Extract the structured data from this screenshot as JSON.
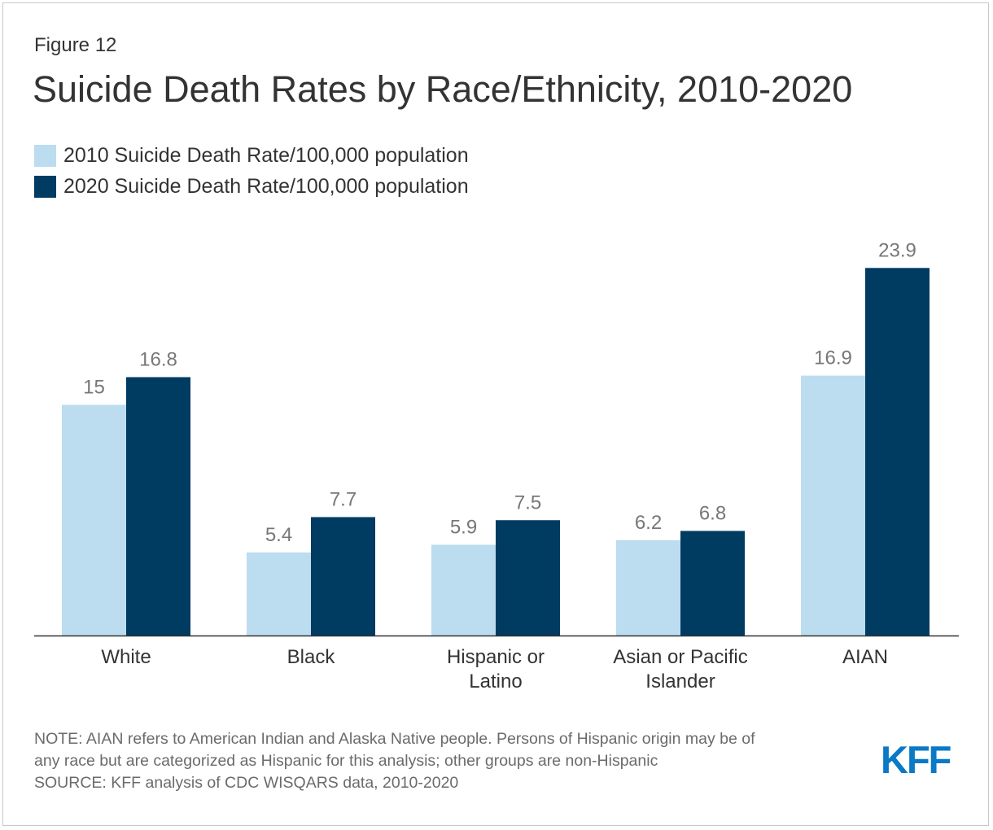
{
  "figure_label": "Figure 12",
  "colors": {
    "series_2010": "#bcdcf0",
    "series_2020": "#003b62",
    "text": "#333333",
    "label_grey": "#777777",
    "logo_blue": "#0a79c6"
  },
  "notes": {
    "note_line1": "NOTE: AIAN refers to American Indian and Alaska Native people. Persons of Hispanic origin may be of",
    "note_line2": "any race but are categorized as Hispanic for this analysis; other groups are non-Hispanic",
    "source": "SOURCE: KFF analysis of CDC WISQARS data, 2010-2020"
  },
  "logo": {
    "text": "KFF"
  },
  "chart_data": {
    "type": "bar",
    "title": "Suicide Death Rates by Race/Ethnicity, 2010-2020",
    "xlabel": "",
    "ylabel": "",
    "ylim": [
      0,
      25
    ],
    "grid": false,
    "legend_position": "top-left",
    "categories": [
      [
        "White"
      ],
      [
        "Black"
      ],
      [
        "Hispanic or",
        "Latino"
      ],
      [
        "Asian or Pacific",
        "Islander"
      ],
      [
        "AIAN"
      ]
    ],
    "series": [
      {
        "name": "2010 Suicide Death Rate/100,000 population",
        "values": [
          15,
          5.4,
          5.9,
          6.2,
          16.9
        ],
        "labels": [
          "15",
          "5.4",
          "5.9",
          "6.2",
          "16.9"
        ]
      },
      {
        "name": "2020 Suicide Death Rate/100,000 population",
        "values": [
          16.8,
          7.7,
          7.5,
          6.8,
          23.9
        ],
        "labels": [
          "16.8",
          "7.7",
          "7.5",
          "6.8",
          "23.9"
        ]
      }
    ]
  }
}
